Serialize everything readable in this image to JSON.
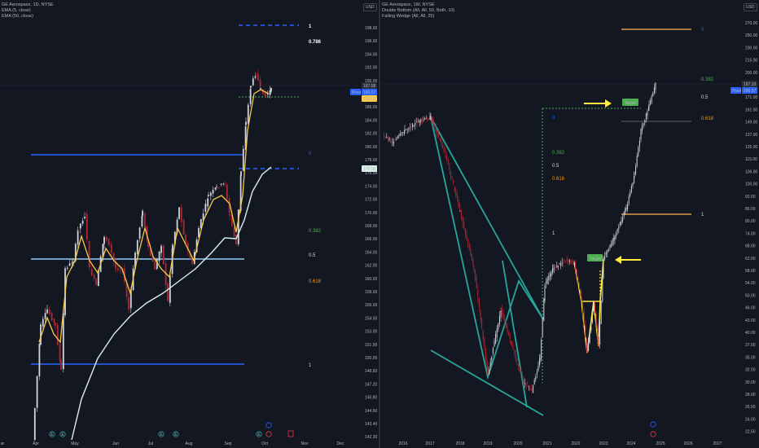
{
  "left": {
    "legend": [
      "GE Aerospace, 1D, NYSE",
      "EMA (5, close)",
      "EMA (50, close)"
    ],
    "currency": "USD",
    "price_axis": [
      "198.00",
      "196.00",
      "194.00",
      "192.00",
      "190.00",
      "188.00",
      "186.00",
      "184.00",
      "182.00",
      "180.00",
      "178.00",
      "176.00",
      "174.00",
      "172.00",
      "170.00",
      "168.00",
      "166.00",
      "164.00",
      "162.00",
      "160.00",
      "158.00",
      "156.00",
      "154.50",
      "153.00",
      "151.50",
      "150.00",
      "148.60",
      "147.20",
      "145.80",
      "144.60",
      "143.40",
      "142.20"
    ],
    "time_axis": [
      "ar",
      "Apr",
      "May",
      "Jun",
      "Jul",
      "Aug",
      "Sep",
      "Oct",
      "Nov",
      "Dec"
    ],
    "price_tags": [
      {
        "text": "187.08",
        "color": "#d1d4dc"
      },
      {
        "text": "186.57",
        "color": "#ffffff"
      },
      {
        "text": "186.18",
        "color": "#000000"
      },
      {
        "text": "175.38",
        "color": "#000000"
      }
    ],
    "pivot_label": "Pivot",
    "fib_labels": [
      {
        "text": "1",
        "color": "#ffffff"
      },
      {
        "text": "0.786",
        "color": "#ffffff"
      },
      {
        "text": "0",
        "color": "#2962ff"
      },
      {
        "text": "0.382",
        "color": "#4caf50"
      },
      {
        "text": "0.5",
        "color": "#d1d4dc"
      },
      {
        "text": "0.618",
        "color": "#ff9800"
      },
      {
        "text": "1",
        "color": "#d1d4dc"
      }
    ],
    "event_icons": [
      "E",
      "E",
      "E",
      "E",
      "E"
    ]
  },
  "right": {
    "legend": [
      "GE Aerospace, 1W, NYSE",
      "Double Bottom (All, All, 50, Both, 10)",
      "Falling Wedge (All, All, 25)"
    ],
    "currency": "USD",
    "price_axis": [
      "270.00",
      "250.00",
      "230.00",
      "215.00",
      "200.00",
      "188.00",
      "171.00",
      "161.00",
      "149.00",
      "137.00",
      "125.00",
      "115.00",
      "106.00",
      "100.00",
      "92.00",
      "86.00",
      "80.00",
      "74.00",
      "68.00",
      "62.00",
      "58.00",
      "54.00",
      "50.00",
      "46.00",
      "43.00",
      "40.00",
      "37.00",
      "35.00",
      "32.50",
      "30.00",
      "28.00",
      "26.50",
      "24.00",
      "22.50"
    ],
    "time_axis": [
      "2016",
      "2017",
      "2018",
      "2019",
      "2020",
      "2021",
      "2022",
      "2023",
      "2024",
      "2025",
      "2026",
      "2027"
    ],
    "price_tags": [
      {
        "text": "187.10",
        "color": "#d1d4dc"
      },
      {
        "text": "186.57",
        "color": "#ffffff"
      }
    ],
    "pivot_label": "Pivot",
    "fib_labels": [
      {
        "text": "0",
        "color": "#2962ff"
      },
      {
        "text": "0.382",
        "color": "#4caf50"
      },
      {
        "text": "0.5",
        "color": "#d1d4dc"
      },
      {
        "text": "0.618",
        "color": "#ff9800"
      },
      {
        "text": "1",
        "color": "#d1d4dc"
      },
      {
        "text": "0",
        "color": "#2962ff"
      },
      {
        "text": "0.382",
        "color": "#4caf50"
      },
      {
        "text": "0.5",
        "color": "#d1d4dc"
      },
      {
        "text": "0.618",
        "color": "#ff9800"
      },
      {
        "text": "1",
        "color": "#d1d4dc"
      }
    ],
    "target_labels": [
      "Target",
      "Target"
    ]
  },
  "colors": {
    "background": "#131722",
    "up_candle": "#d1d4dc",
    "down_candle": "#b22833",
    "ema_fast": "#f7c948",
    "ema_slow": "#d9f0e8",
    "fib_blue": "#2962ff",
    "wedge": "#26a69a",
    "double_bottom": "#ffeb3b",
    "arrow": "#ffeb3b"
  }
}
